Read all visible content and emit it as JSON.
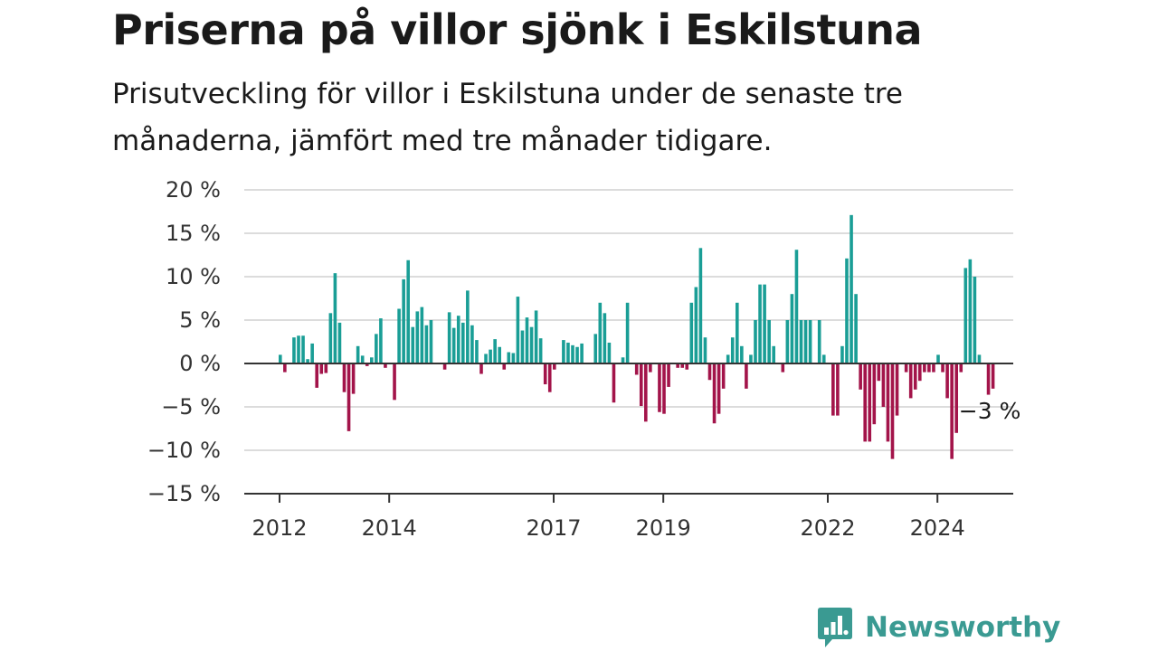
{
  "header": {
    "title": "Priserna på villor sjönk i Eskilstuna",
    "subtitle": "Prisutveckling för villor i Eskilstuna under de senaste tre månaderna, jämfört med tre månader tidigare."
  },
  "brand": {
    "name": "Newsworthy",
    "logo_icon": "bar-chart-bubble-icon",
    "color": "#3a9a92"
  },
  "chart_data": {
    "type": "bar",
    "ylim": [
      -15,
      20
    ],
    "y_ticks": [
      {
        "value": 20,
        "label": "20 %"
      },
      {
        "value": 15,
        "label": "15 %"
      },
      {
        "value": 10,
        "label": "10 %"
      },
      {
        "value": 5,
        "label": "5 %"
      },
      {
        "value": 0,
        "label": "0 %"
      },
      {
        "value": -5,
        "label": "−5 %"
      },
      {
        "value": -10,
        "label": "−10 %"
      },
      {
        "value": -15,
        "label": "−15 %"
      }
    ],
    "x_ticks": [
      "2012",
      "2014",
      "2017",
      "2019",
      "2022",
      "2024"
    ],
    "grid": true,
    "colors": {
      "positive": "#1a9e96",
      "negative": "#a3144a",
      "grid": "#dcdcdc",
      "axis": "#333333"
    },
    "annotation": {
      "label": "−3 %",
      "value": -3
    },
    "values": [
      1,
      -1,
      0,
      3,
      3.2,
      3.2,
      0.5,
      2.3,
      -2.8,
      -1.2,
      -1.1,
      5.8,
      10.4,
      4.7,
      -3.3,
      -7.8,
      -3.5,
      2,
      0.9,
      -0.3,
      0.7,
      3.4,
      5.2,
      -0.5,
      0,
      -4.2,
      6.3,
      9.7,
      11.9,
      4.2,
      6,
      6.5,
      4.4,
      5,
      0,
      0,
      -0.7,
      5.9,
      4.1,
      5.5,
      4.7,
      8.4,
      4.4,
      2.7,
      -1.2,
      1.1,
      1.6,
      2.8,
      1.9,
      -0.7,
      1.3,
      1.2,
      7.7,
      3.8,
      5.3,
      4.2,
      6.1,
      2.9,
      -2.4,
      -3.3,
      -0.7,
      0,
      2.7,
      2.4,
      2.1,
      1.9,
      2.3,
      0,
      0,
      3.4,
      7,
      5.8,
      2.4,
      -4.5,
      0,
      0.7,
      7,
      0,
      -1.3,
      -4.9,
      -6.7,
      -1,
      0,
      -5.6,
      -5.8,
      -2.7,
      0,
      -0.5,
      -0.5,
      -0.7,
      7,
      8.8,
      13.3,
      3,
      -1.9,
      -6.9,
      -5.8,
      -2.9,
      1,
      3,
      7,
      2,
      -2.9,
      1,
      5,
      9.1,
      9.1,
      5,
      2,
      0,
      -1,
      5,
      8,
      13.1,
      5,
      5,
      5,
      0,
      5,
      1,
      0,
      -6,
      -6,
      2,
      12.1,
      17.1,
      8,
      -3,
      -9,
      -9,
      -7,
      -2,
      -5,
      -9,
      -11,
      -6,
      0,
      -1,
      -4,
      -3,
      -2,
      -1,
      -1,
      -1,
      1,
      -1,
      -4,
      -11,
      -8,
      -1,
      11,
      12,
      10,
      1,
      0,
      -3.6,
      -2.9
    ]
  }
}
